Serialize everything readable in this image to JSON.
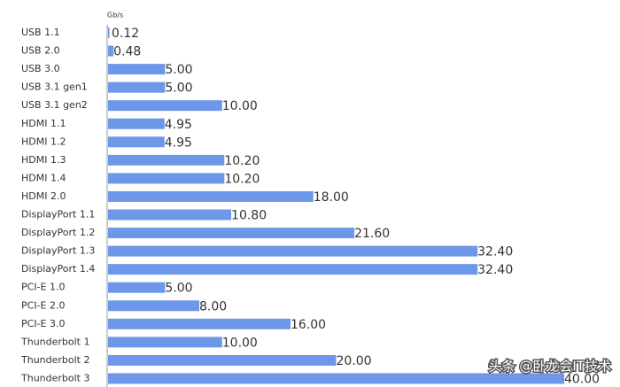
{
  "chart_data": {
    "type": "hbar",
    "unit_label": "Gb/s",
    "categories": [
      "USB 1.1",
      "USB 2.0",
      "USB 3.0",
      "USB 3.1 gen1",
      "USB 3.1 gen2",
      "HDMI 1.1",
      "HDMI 1.2",
      "HDMI 1.3",
      "HDMI 1.4",
      "HDMI 2.0",
      "DisplayPort 1.1",
      "DisplayPort 1.2",
      "DisplayPort 1.3",
      "DisplayPort 1.4",
      "PCI-E 1.0",
      "PCI-E 2.0",
      "PCI-E 3.0",
      "Thunderbolt 1",
      "Thunderbolt 2",
      "Thunderbolt 3"
    ],
    "values": [
      0.12,
      0.48,
      5,
      5,
      10,
      4.95,
      4.95,
      10.2,
      10.2,
      18,
      10.8,
      21.6,
      32.4,
      32.4,
      5,
      8,
      16,
      10,
      20,
      40
    ],
    "value_labels": [
      "0.12",
      "0.48",
      "5.00",
      "5.00",
      "10.00",
      "4.95",
      "4.95",
      "10.20",
      "10.20",
      "18.00",
      "10.80",
      "21.60",
      "32.40",
      "32.40",
      "5.00",
      "8.00",
      "16.00",
      "10.00",
      "20.00",
      "40.00"
    ],
    "color": "#6d97e8",
    "xlim": [
      0,
      40
    ]
  },
  "watermark": "头条 @卧龙会IT技术"
}
